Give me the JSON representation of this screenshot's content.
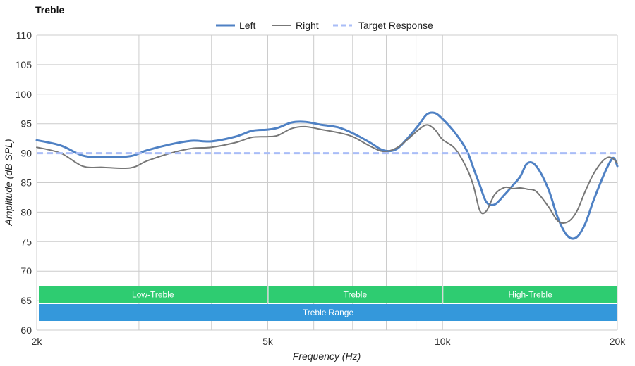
{
  "chart_data": {
    "type": "line",
    "title": "Treble",
    "xlabel": "Frequency (Hz)",
    "ylabel": "Amplitude (dB SPL)",
    "x_scale": "log",
    "xlim": [
      2000,
      20000
    ],
    "ylim": [
      60,
      110
    ],
    "x_ticks": [
      {
        "value": 2000,
        "label": "2k"
      },
      {
        "value": 5000,
        "label": "5k"
      },
      {
        "value": 10000,
        "label": "10k"
      },
      {
        "value": 20000,
        "label": "20k"
      }
    ],
    "x_minor_gridlines": [
      3000,
      4000,
      6000,
      7000,
      8000,
      9000
    ],
    "y_ticks": [
      60,
      65,
      70,
      75,
      80,
      85,
      90,
      95,
      100,
      105,
      110
    ],
    "grid": true,
    "legend_position": "top-center",
    "series": [
      {
        "name": "Left",
        "color": "#4f81c4",
        "style": "solid-thick",
        "x": [
          2000,
          2200,
          2400,
          2600,
          2900,
          3100,
          3400,
          3700,
          4000,
          4400,
          4700,
          5000,
          5200,
          5500,
          5800,
          6200,
          6600,
          7000,
          7500,
          7900,
          8300,
          8700,
          9100,
          9400,
          9700,
          10000,
          10500,
          11000,
          11300,
          11600,
          11900,
          12300,
          12800,
          13200,
          13600,
          14000,
          14500,
          15200,
          15800,
          16400,
          17000,
          17600,
          18200,
          18800,
          19300,
          19700,
          20000
        ],
        "y": [
          92.2,
          91.3,
          89.6,
          89.3,
          89.5,
          90.5,
          91.5,
          92.1,
          92.0,
          92.8,
          93.8,
          94.0,
          94.3,
          95.2,
          95.3,
          94.8,
          94.4,
          93.4,
          91.8,
          90.5,
          90.6,
          92.5,
          94.8,
          96.6,
          96.8,
          95.8,
          93.5,
          90.5,
          87.5,
          84.5,
          81.7,
          81.3,
          83.0,
          84.5,
          86.0,
          88.3,
          87.8,
          84.0,
          79.0,
          76.0,
          75.7,
          78.0,
          82.0,
          85.5,
          88.0,
          89.2,
          87.8
        ]
      },
      {
        "name": "Right",
        "color": "#777777",
        "style": "solid-thin",
        "x": [
          2000,
          2200,
          2400,
          2600,
          2900,
          3100,
          3400,
          3700,
          4000,
          4400,
          4700,
          5000,
          5200,
          5500,
          5800,
          6200,
          6600,
          7000,
          7500,
          7900,
          8300,
          8700,
          9100,
          9400,
          9700,
          10000,
          10500,
          11000,
          11300,
          11600,
          11900,
          12300,
          12800,
          13200,
          13600,
          14000,
          14500,
          15200,
          15800,
          16400,
          17000,
          17600,
          18200,
          18800,
          19300,
          19700,
          20000
        ],
        "y": [
          91.0,
          90.0,
          87.8,
          87.6,
          87.5,
          88.7,
          90.0,
          90.8,
          91.0,
          91.8,
          92.7,
          92.8,
          93.0,
          94.2,
          94.5,
          94.0,
          93.5,
          92.8,
          91.2,
          90.3,
          90.8,
          92.3,
          94.0,
          94.8,
          94.0,
          92.3,
          90.8,
          87.5,
          84.5,
          80.2,
          80.2,
          83.0,
          84.2,
          84.0,
          84.1,
          83.9,
          83.5,
          81.0,
          78.5,
          78.3,
          80.0,
          83.5,
          86.5,
          88.5,
          89.3,
          89.0,
          88.3
        ]
      },
      {
        "name": "Target Response",
        "color": "#a9bdf7",
        "style": "dashed",
        "x": [
          2000,
          20000
        ],
        "y": [
          90.0,
          90.0
        ]
      }
    ],
    "bands": [
      {
        "label": "Low-Treble",
        "x_start": 2000,
        "x_end": 5000,
        "color": "#2ecc71",
        "row": 1
      },
      {
        "label": "Treble",
        "x_start": 5000,
        "x_end": 10000,
        "color": "#2ecc71",
        "row": 1
      },
      {
        "label": "High-Treble",
        "x_start": 10000,
        "x_end": 20000,
        "color": "#2ecc71",
        "row": 1
      },
      {
        "label": "Treble Range",
        "x_start": 2000,
        "x_end": 20000,
        "color": "#3498db",
        "row": 2
      }
    ]
  },
  "background": "#ffffff",
  "grid_color": "#cccccc"
}
